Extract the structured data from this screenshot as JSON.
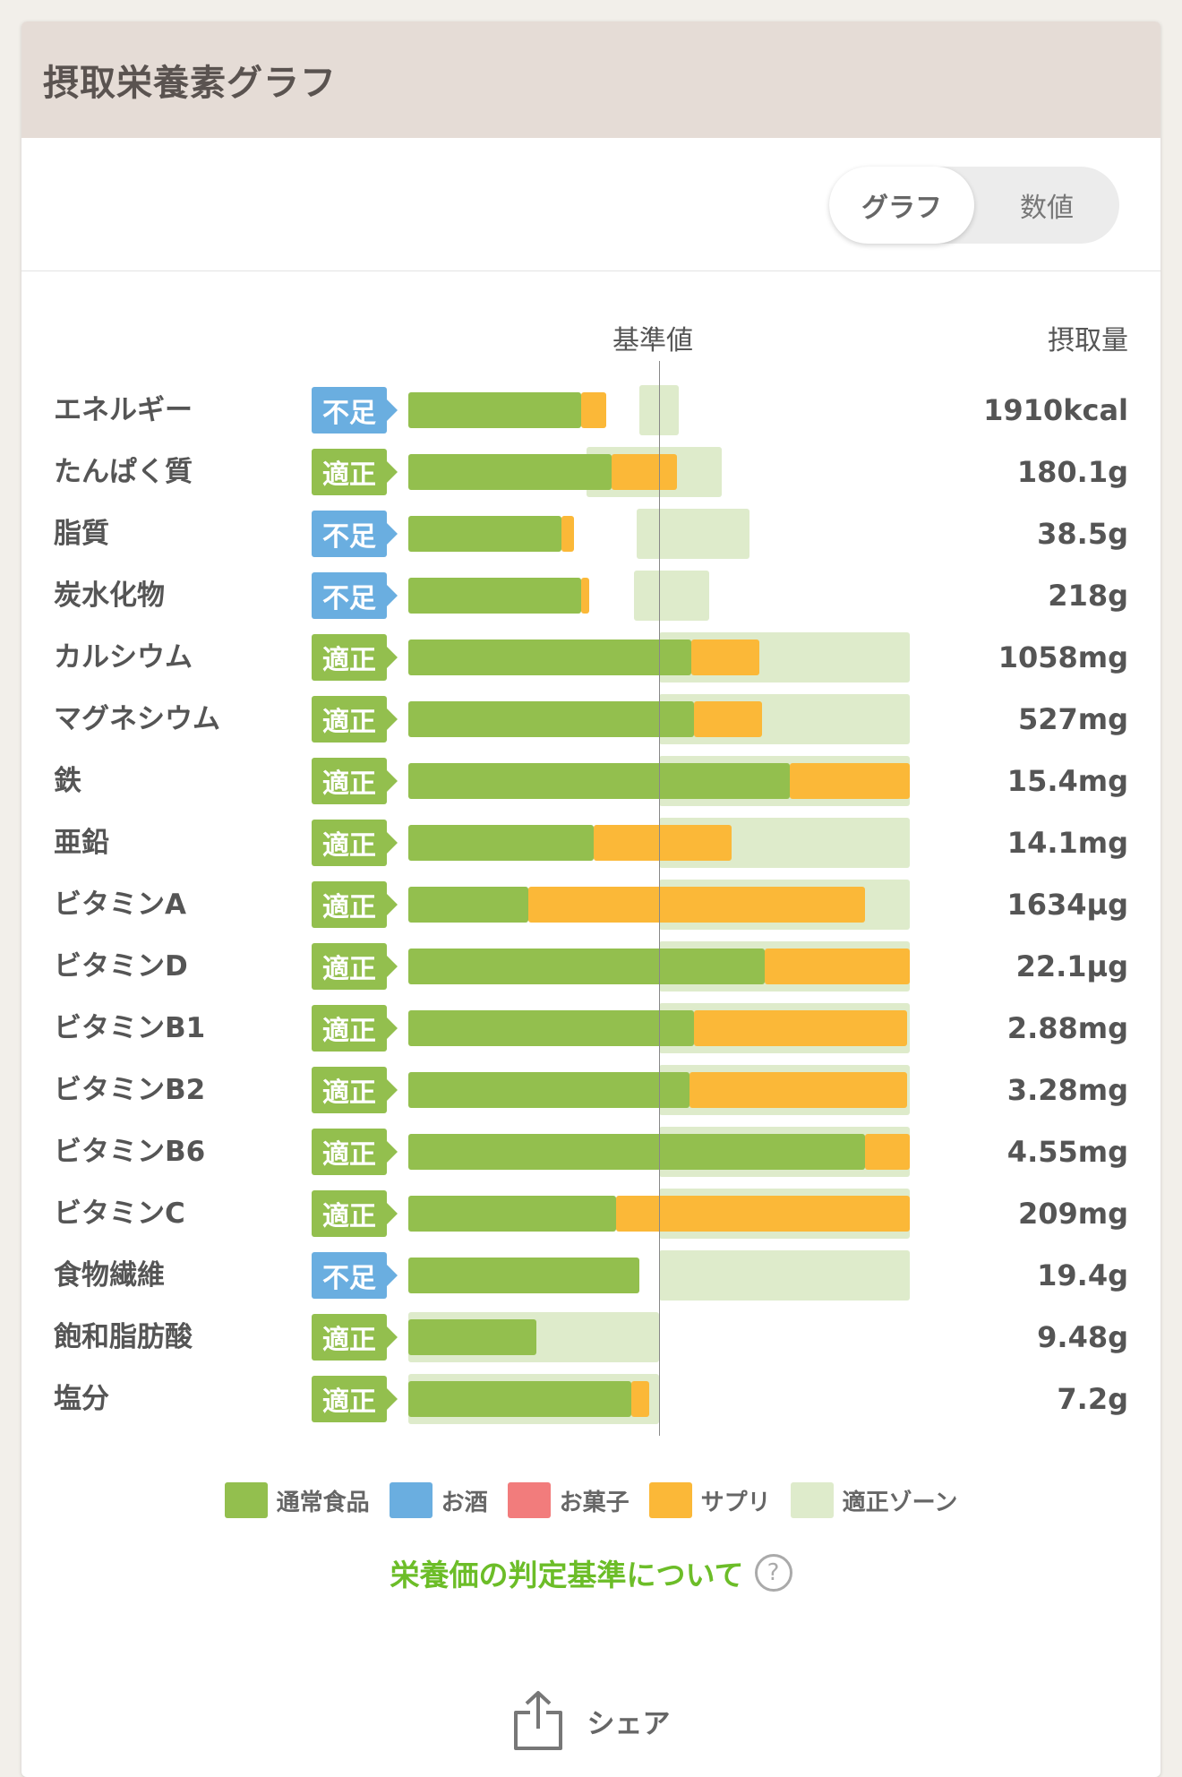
{
  "header": {
    "title": "摂取栄養素グラフ"
  },
  "toggle": {
    "graph_label": "グラフ",
    "number_label": "数値",
    "selected": "グラフ"
  },
  "columns": {
    "standard": "基準値",
    "intake": "摂取量"
  },
  "colors": {
    "normal_food": "#93bf4e",
    "alcohol": "#6aaee0",
    "snack": "#f27c7c",
    "supplement": "#fbb838",
    "proper_zone": "#deebcb",
    "status_short": "#6aaee0",
    "status_ok": "#93bf4e"
  },
  "chart_data": {
    "type": "bar",
    "stacked": true,
    "orientation": "horizontal",
    "reference": 100,
    "categories": [
      "エネルギー",
      "たんぱく質",
      "脂質",
      "炭水化物",
      "カルシウム",
      "マグネシウム",
      "鉄",
      "亜鉛",
      "ビタミンA",
      "ビタミンD",
      "ビタミンB1",
      "ビタミンB2",
      "ビタミンB6",
      "ビタミンC",
      "食物繊維",
      "飽和脂肪酸",
      "塩分"
    ],
    "status": [
      "不足",
      "適正",
      "不足",
      "不足",
      "適正",
      "適正",
      "適正",
      "適正",
      "適正",
      "適正",
      "適正",
      "適正",
      "適正",
      "適正",
      "不足",
      "適正",
      "適正"
    ],
    "intake": [
      "1910kcal",
      "180.1g",
      "38.5g",
      "218g",
      "1058mg",
      "527mg",
      "15.4mg",
      "14.1mg",
      "1634µg",
      "22.1µg",
      "2.88mg",
      "3.28mg",
      "4.55mg",
      "209mg",
      "19.4g",
      "9.48g",
      "7.2g"
    ],
    "series": [
      {
        "name": "通常食品",
        "values": [
          69,
          81,
          61,
          69,
          113,
          114,
          152,
          74,
          48,
          142,
          114,
          112,
          182,
          83,
          92,
          51,
          89
        ]
      },
      {
        "name": "お酒",
        "values": [
          0,
          0,
          0,
          0,
          0,
          0,
          0,
          0,
          0,
          0,
          0,
          0,
          0,
          0,
          0,
          0,
          0
        ]
      },
      {
        "name": "お菓子",
        "values": [
          0,
          0,
          0,
          0,
          0,
          0,
          0,
          0,
          0,
          0,
          0,
          0,
          0,
          0,
          0,
          0,
          0
        ]
      },
      {
        "name": "サプリ",
        "values": [
          10,
          26,
          5,
          3,
          27,
          27,
          48,
          55,
          134,
          58,
          85,
          87,
          18,
          117,
          0,
          0,
          7
        ]
      }
    ],
    "proper_zone": [
      [
        92,
        108
      ],
      [
        71,
        125
      ],
      [
        91,
        136
      ],
      [
        90,
        120
      ],
      [
        100,
        200
      ],
      [
        100,
        200
      ],
      [
        100,
        200
      ],
      [
        100,
        200
      ],
      [
        100,
        200
      ],
      [
        100,
        200
      ],
      [
        100,
        200
      ],
      [
        100,
        200
      ],
      [
        100,
        200
      ],
      [
        100,
        200
      ],
      [
        100,
        200
      ],
      [
        0,
        100
      ],
      [
        0,
        100
      ]
    ],
    "xlim": [
      0,
      200
    ]
  },
  "legend": [
    "通常食品",
    "お酒",
    "お菓子",
    "サプリ",
    "適正ゾーン"
  ],
  "links": {
    "criteria": "栄養価の判定基準について",
    "help_icon": "?"
  },
  "share": {
    "label": "シェア",
    "icon": "share-icon"
  }
}
